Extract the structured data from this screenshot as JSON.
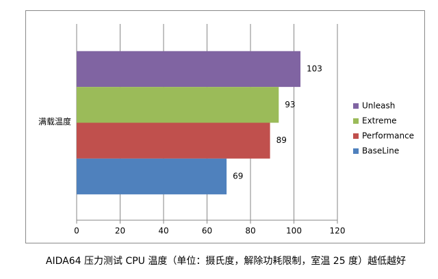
{
  "chart_data": {
    "type": "bar",
    "orientation": "horizontal",
    "categories": [
      "满载温度"
    ],
    "series": [
      {
        "name": "Unleash",
        "color": "#8064a2",
        "values": [
          103
        ]
      },
      {
        "name": "Extreme",
        "color": "#9bbb59",
        "values": [
          93
        ]
      },
      {
        "name": "Performance",
        "color": "#c0504d",
        "values": [
          89
        ]
      },
      {
        "name": "BaseLine",
        "color": "#4f81bd",
        "values": [
          69
        ]
      }
    ],
    "xlim": [
      0,
      120
    ],
    "xticks": [
      0,
      20,
      40,
      60,
      80,
      100,
      120
    ],
    "grid": true,
    "legend": "right",
    "caption": "AIDA64 压力测试 CPU 温度（单位：摄氏度，解除功耗限制，室温 25 度）越低越好"
  }
}
